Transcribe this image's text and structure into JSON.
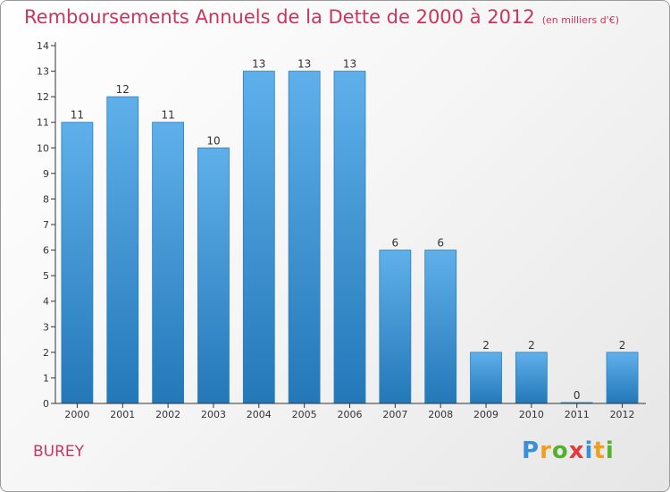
{
  "title": "Remboursements Annuels de la Dette de 2000 à 2012",
  "subtitle": "(en milliers d'€)",
  "commune": "BUREY",
  "logo": {
    "text": "Proxiti",
    "letters": [
      {
        "char": "P",
        "color": "#3a8fd8"
      },
      {
        "char": "r",
        "color": "#f0a020"
      },
      {
        "char": "o",
        "color": "#55b030"
      },
      {
        "char": "x",
        "color": "#e33a3a"
      },
      {
        "char": "i",
        "color": "#3a8fd8"
      },
      {
        "char": "t",
        "color": "#f0a020"
      },
      {
        "char": "i",
        "color": "#55b030"
      }
    ]
  },
  "colors": {
    "accent": "#c8365e",
    "bar_top": "#5fb0ea",
    "bar_bottom": "#2478b8",
    "axis": "#333333"
  },
  "chart_data": {
    "type": "bar",
    "title": "Remboursements Annuels de la Dette de 2000 à 2012",
    "subtitle": "(en milliers d'€)",
    "categories": [
      "2000",
      "2001",
      "2002",
      "2003",
      "2004",
      "2005",
      "2006",
      "2007",
      "2008",
      "2009",
      "2010",
      "2011",
      "2012"
    ],
    "values": [
      11,
      12,
      11,
      10,
      13,
      13,
      13,
      6,
      6,
      2,
      2,
      0,
      2
    ],
    "data_labels": [
      "11",
      "12",
      "11",
      "10",
      "13",
      "13",
      "13",
      "6",
      "6",
      "2",
      "2",
      "0",
      "2"
    ],
    "ylim": [
      0,
      14
    ],
    "yticks": [
      0,
      1,
      2,
      3,
      4,
      5,
      6,
      7,
      8,
      9,
      10,
      11,
      12,
      13,
      14
    ],
    "grid": false,
    "legend": "none"
  }
}
